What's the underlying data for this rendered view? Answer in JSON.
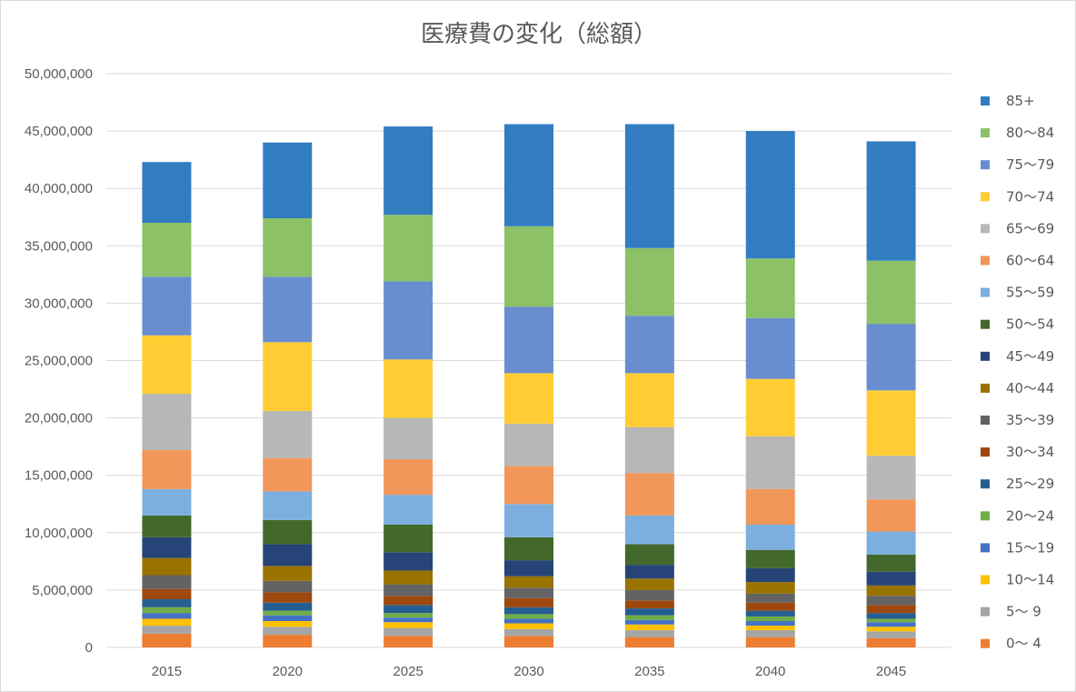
{
  "chart_data": {
    "type": "bar",
    "stacked": true,
    "title": "医療費の変化（総額）",
    "xlabel": "",
    "ylabel": "",
    "ylim": [
      0,
      50000000
    ],
    "yticks": [
      0,
      5000000,
      10000000,
      15000000,
      20000000,
      25000000,
      30000000,
      35000000,
      40000000,
      45000000,
      50000000
    ],
    "ytick_labels": [
      "0",
      "5,000,000",
      "10,000,000",
      "15,000,000",
      "20,000,000",
      "25,000,000",
      "30,000,000",
      "35,000,000",
      "40,000,000",
      "45,000,000",
      "50,000,000"
    ],
    "grid": true,
    "legend_position": "right",
    "categories": [
      "2015",
      "2020",
      "2025",
      "2030",
      "2035",
      "2040",
      "2045"
    ],
    "series": [
      {
        "name": "0～ 4",
        "color": "#ED7D31",
        "values": [
          1200000,
          1100000,
          1000000,
          1000000,
          900000,
          900000,
          800000
        ]
      },
      {
        "name": "5～ 9",
        "color": "#A5A5A5",
        "values": [
          700000,
          700000,
          700000,
          600000,
          600000,
          600000,
          600000
        ]
      },
      {
        "name": "10～14",
        "color": "#FFC000",
        "values": [
          600000,
          500000,
          500000,
          500000,
          500000,
          400000,
          400000
        ]
      },
      {
        "name": "15～19",
        "color": "#4472C4",
        "values": [
          500000,
          500000,
          400000,
          400000,
          400000,
          400000,
          400000
        ]
      },
      {
        "name": "20～24",
        "color": "#70AD47",
        "values": [
          500000,
          400000,
          400000,
          400000,
          400000,
          400000,
          300000
        ]
      },
      {
        "name": "25～29",
        "color": "#255E91",
        "values": [
          700000,
          700000,
          700000,
          600000,
          600000,
          500000,
          500000
        ]
      },
      {
        "name": "30～34",
        "color": "#9E480E",
        "values": [
          900000,
          900000,
          800000,
          800000,
          700000,
          700000,
          700000
        ]
      },
      {
        "name": "35～39",
        "color": "#636363",
        "values": [
          1200000,
          1000000,
          1000000,
          900000,
          900000,
          800000,
          800000
        ]
      },
      {
        "name": "40～44",
        "color": "#997300",
        "values": [
          1500000,
          1300000,
          1200000,
          1000000,
          1000000,
          1000000,
          900000
        ]
      },
      {
        "name": "45～49",
        "color": "#264478",
        "values": [
          1800000,
          1900000,
          1600000,
          1400000,
          1200000,
          1200000,
          1200000
        ]
      },
      {
        "name": "50～54",
        "color": "#43682B",
        "values": [
          1900000,
          2100000,
          2400000,
          2000000,
          1800000,
          1600000,
          1500000
        ]
      },
      {
        "name": "55～59",
        "color": "#7CAFDD",
        "values": [
          2300000,
          2500000,
          2600000,
          2900000,
          2500000,
          2200000,
          2000000
        ]
      },
      {
        "name": "60～64",
        "color": "#F1975A",
        "values": [
          3400000,
          2900000,
          3100000,
          3300000,
          3700000,
          3100000,
          2800000
        ]
      },
      {
        "name": "65～69",
        "color": "#B7B7B7",
        "values": [
          4900000,
          4100000,
          3600000,
          3700000,
          4000000,
          4600000,
          3800000
        ]
      },
      {
        "name": "70～74",
        "color": "#FFCD33",
        "values": [
          5100000,
          6000000,
          5100000,
          4400000,
          4700000,
          5000000,
          5700000
        ]
      },
      {
        "name": "75～79",
        "color": "#698ED0",
        "values": [
          5100000,
          5700000,
          6800000,
          5800000,
          5000000,
          5300000,
          5800000
        ]
      },
      {
        "name": "80～84",
        "color": "#8CC168",
        "values": [
          4700000,
          5100000,
          5800000,
          7000000,
          5900000,
          5200000,
          5500000
        ]
      },
      {
        "name": "85+",
        "color": "#327DC2",
        "values": [
          5300000,
          6600000,
          7700000,
          8900000,
          10800000,
          11100000,
          10400000
        ]
      }
    ]
  }
}
